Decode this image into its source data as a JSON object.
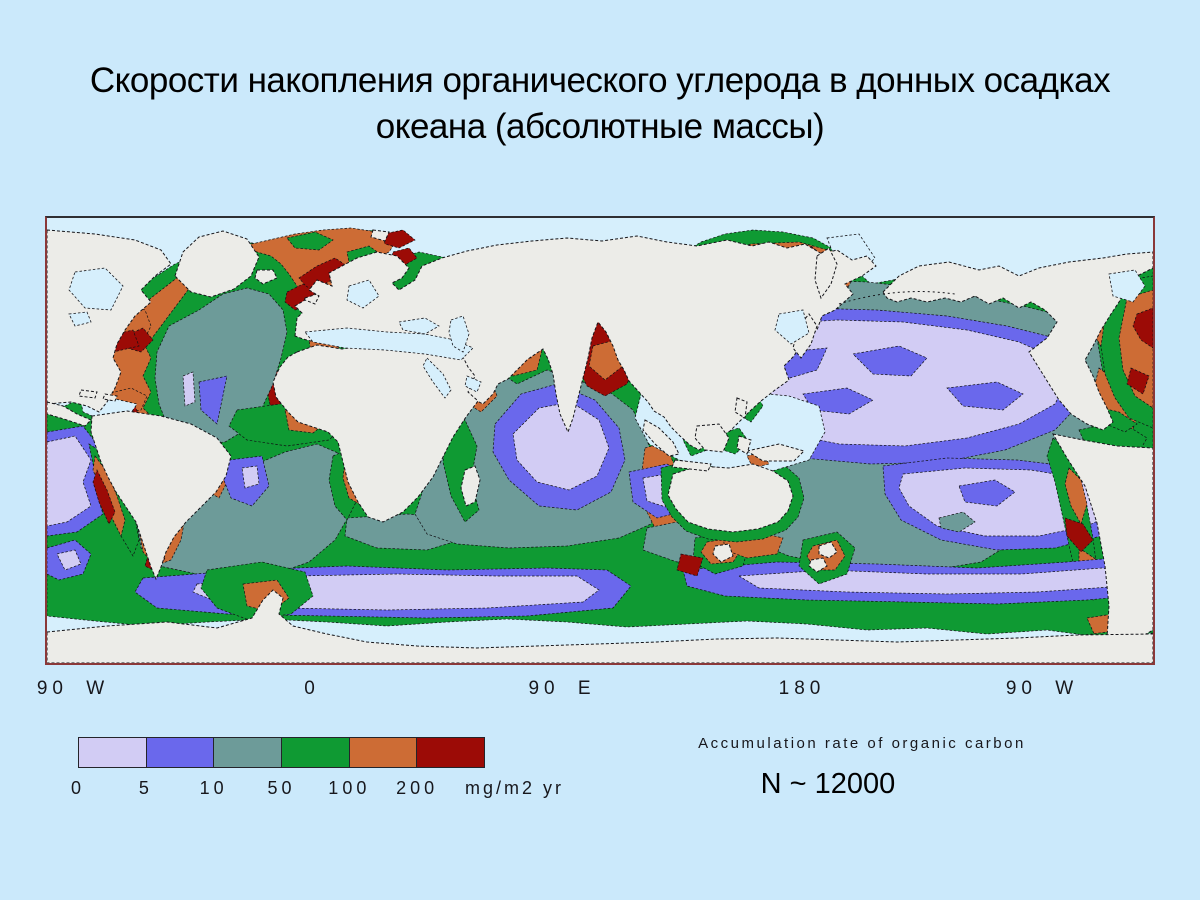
{
  "slide": {
    "title": "Скорости накопления органического углерода в донных осадках океана (абсолютные массы)"
  },
  "colors": {
    "page_bg": "#cbe9fb",
    "map_sea": "#d6effc",
    "land": "#ecece8",
    "coastline": "#15151a",
    "frame_top": "#2f2f33",
    "frame_side": "#8a3838",
    "class0": "#d2ccf4",
    "class1": "#6a68ec",
    "class2": "#6d9b99",
    "class3": "#0f9a33",
    "class4": "#cd6c35",
    "class5": "#9c0b06"
  },
  "map": {
    "axis_ticks": [
      {
        "label": "90 W"
      },
      {
        "label": "0"
      },
      {
        "label": "90 E"
      },
      {
        "label": "180"
      },
      {
        "label": "90 W"
      }
    ]
  },
  "legend": {
    "title": "Accumulation rate of organic carbon",
    "unit_label": "mg/m2 yr",
    "boundary_values": [
      "0",
      "5",
      "10",
      "50",
      "100",
      "200"
    ],
    "classes": [
      {
        "range": "0-5",
        "color_key": "class0"
      },
      {
        "range": "5-10",
        "color_key": "class1"
      },
      {
        "range": "10-50",
        "color_key": "class2"
      },
      {
        "range": "50-100",
        "color_key": "class3"
      },
      {
        "range": "100-200",
        "color_key": "class4"
      },
      {
        "range": ">200",
        "color_key": "class5"
      }
    ],
    "sample_size_label": "N ~ 12000"
  }
}
